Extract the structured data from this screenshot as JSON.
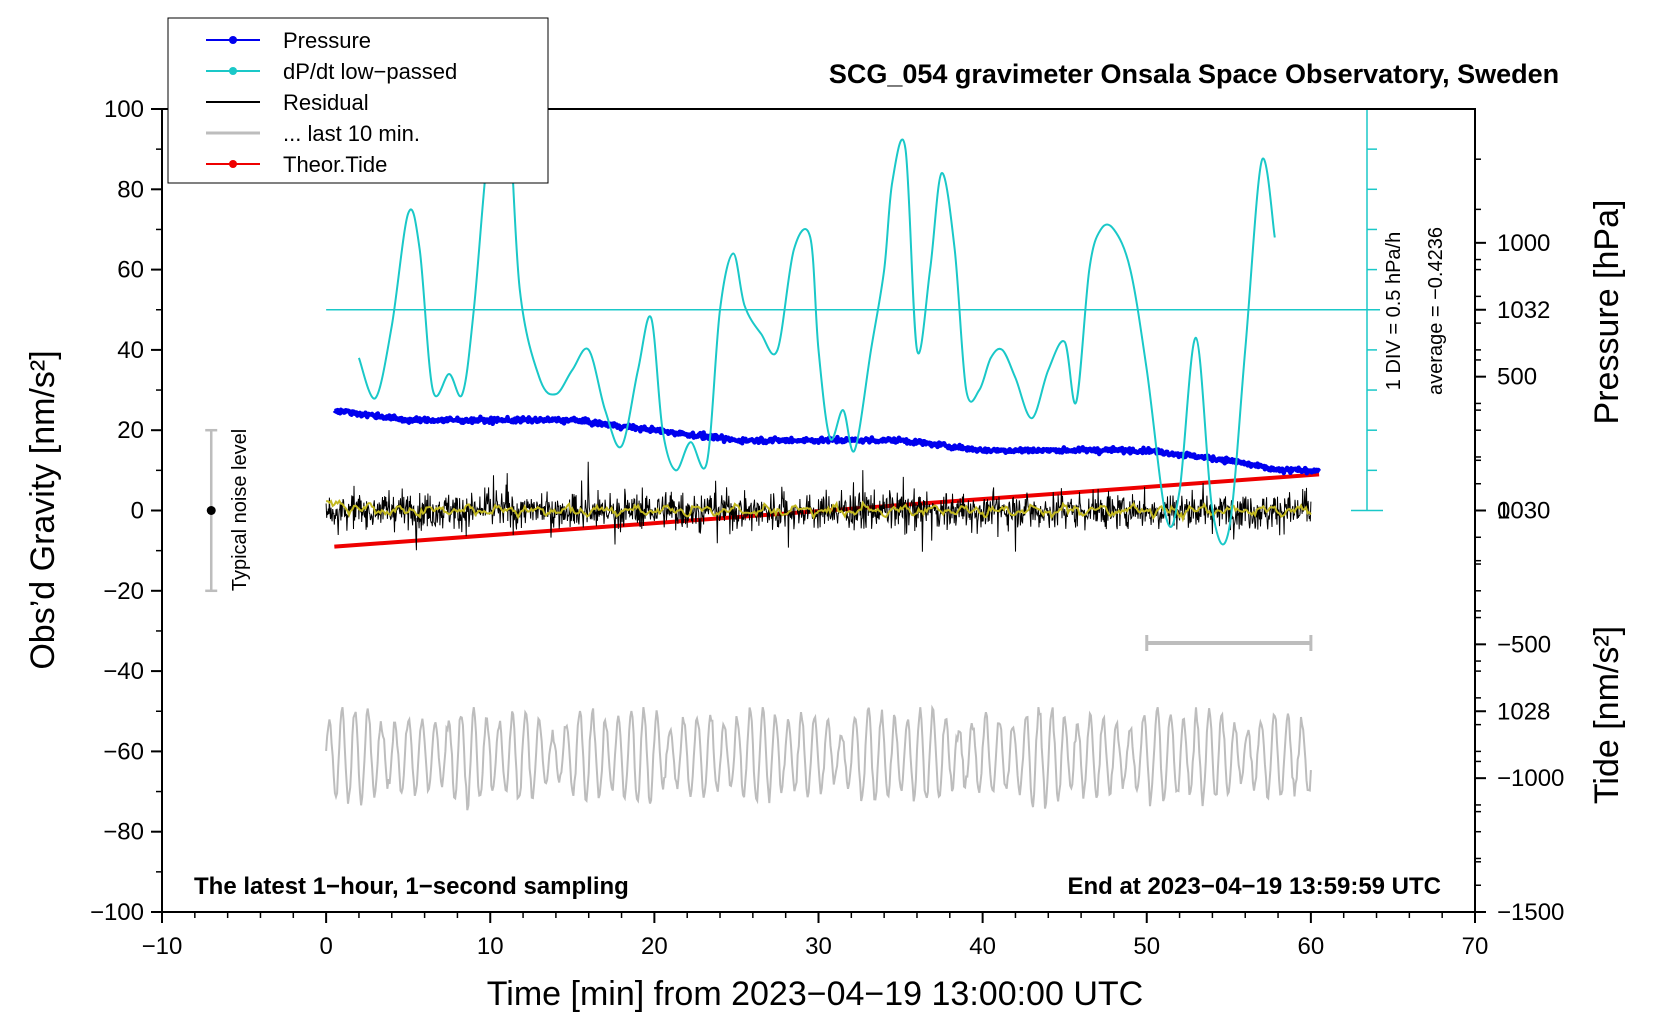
{
  "chart_data": {
    "type": "line",
    "title": "SCG_054 gravimeter Onsala Space Observatory, Sweden",
    "xlabel": "Time [min] from 2023−04−19 13:00:00 UTC",
    "ylabel_left": "Obs’d Gravity [nm/s²]",
    "ylabel_right_top": "Pressure [hPa]",
    "ylabel_right_bottom": "Tide [nm/s²]",
    "xlim": [
      -10,
      70
    ],
    "ylim": [
      -100,
      100
    ],
    "pressure_range": [
      1026,
      1034
    ],
    "tide_range": [
      -1500,
      1500
    ],
    "x_ticks": [
      "−10",
      "0",
      "10",
      "20",
      "30",
      "40",
      "50",
      "60",
      "70"
    ],
    "y_ticks": [
      "−100",
      "−80",
      "−60",
      "−40",
      "−20",
      "0",
      "20",
      "40",
      "60",
      "80",
      "100"
    ],
    "pressure_ticks": [
      "1028",
      "1030",
      "1032"
    ],
    "tide_ticks": [
      "−1500",
      "−1000",
      "−500",
      "0",
      "500",
      "1000"
    ],
    "legend": [
      {
        "label": "Pressure",
        "color": "#0000ee",
        "marker": true
      },
      {
        "label": "dP/dt low−passed",
        "color": "#1ac8c8",
        "marker": true
      },
      {
        "label": "Residual",
        "color": "#000000",
        "marker": false
      },
      {
        "label": "... last 10 min.",
        "color": "#bdbdbd",
        "marker": false
      },
      {
        "label": "Theor.Tide",
        "color": "#ee0000",
        "marker": true
      }
    ],
    "annotations": {
      "left_note": "The latest 1−hour, 1−second sampling",
      "right_note": "End at 2023−04−19 13:59:59 UTC",
      "noise_label": "Typical noise level",
      "div_label": "1 DIV = 0.5 hPa/h",
      "average_label": "average = −0.4236"
    },
    "noise_bar": {
      "x": -7,
      "center": 0,
      "low": -20,
      "high": 20
    },
    "last10_bar": {
      "x_start": 50,
      "x_end": 60,
      "y": -33
    },
    "series": [
      {
        "name": "Pressure",
        "units": "hPa",
        "x": [
          0.5,
          5,
          10,
          15,
          20,
          25,
          30,
          35,
          40,
          45,
          50,
          55,
          58,
          60.5
        ],
        "values": [
          1031.0,
          1030.9,
          1030.9,
          1030.9,
          1030.8,
          1030.7,
          1030.7,
          1030.7,
          1030.6,
          1030.6,
          1030.6,
          1030.5,
          1030.4,
          1030.4
        ]
      },
      {
        "name": "dP/dt low-passed",
        "units": "nm/s²",
        "x": [
          2,
          3,
          4,
          5,
          5.7,
          6.5,
          7.5,
          8.3,
          9,
          10,
          11,
          11.8,
          13,
          14,
          15,
          16,
          17,
          18,
          19,
          19.8,
          20.5,
          21.3,
          22.2,
          23.2,
          24,
          24.8,
          25.5,
          26.5,
          27.5,
          28.5,
          29.5,
          30,
          30.7,
          31.5,
          32.2,
          33.2,
          34,
          34.5,
          35.3,
          36,
          36.8,
          37.5,
          38.3,
          39,
          39.8,
          40.5,
          41.2,
          42,
          43,
          44,
          45,
          45.7,
          46.5,
          47.2,
          48,
          49,
          50,
          51.2,
          52,
          53,
          54,
          55,
          56,
          57,
          57.8
        ],
        "values": [
          38,
          28,
          46,
          74,
          65,
          30,
          34,
          29,
          50,
          95,
          105,
          55,
          33,
          29,
          35,
          40,
          25,
          16,
          35,
          48,
          20,
          10,
          17,
          12,
          50,
          64,
          51,
          44,
          40,
          65,
          68,
          40,
          18,
          25,
          15,
          40,
          60,
          82,
          90,
          40,
          60,
          84,
          65,
          30,
          30,
          38,
          40,
          33,
          23,
          35,
          42,
          27,
          60,
          70,
          70,
          60,
          35,
          -2,
          5,
          43,
          0,
          -5,
          40,
          87,
          68
        ]
      },
      {
        "name": "Theor.Tide",
        "units": "nm/s²",
        "x": [
          0.5,
          60.5
        ],
        "values": [
          -135,
          135
        ]
      }
    ]
  }
}
